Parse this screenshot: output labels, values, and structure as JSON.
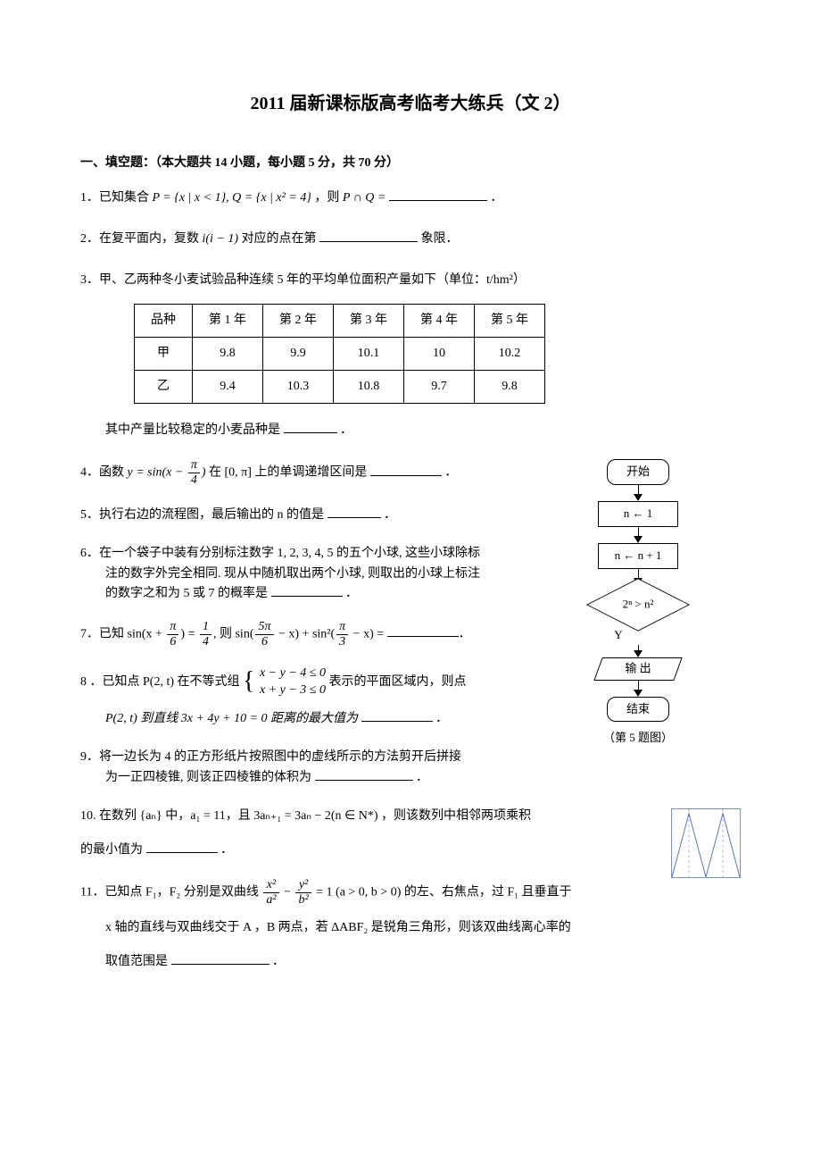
{
  "title": "2011 届新课标版高考临考大练兵（文 2）",
  "section_header": "一、填空题：（本大题共 14 小题，每小题 5 分，共 70 分）",
  "q1": {
    "text_a": "1．已知集合 ",
    "set_P": "P = {x | x < 1}, Q = {x | x² = 4}",
    "text_b": "，则 ",
    "result": "P ∩ Q =",
    "text_c": "．"
  },
  "q2": {
    "text_a": "2．在复平面内，复数 ",
    "expr": "i(i − 1)",
    "text_b": " 对应的点在第",
    "text_c": "象限．"
  },
  "q3": {
    "intro": "3．甲、乙两种冬小麦试验品种连续 5 年的平均单位面积产量如下（单位：t/hm²）",
    "table": {
      "columns": [
        "品种",
        "第 1 年",
        "第 2 年",
        "第 3 年",
        "第 4 年",
        "第 5 年"
      ],
      "rows": [
        [
          "甲",
          "9.8",
          "9.9",
          "10.1",
          "10",
          "10.2"
        ],
        [
          "乙",
          "9.4",
          "10.3",
          "10.8",
          "9.7",
          "9.8"
        ]
      ]
    },
    "tail": "其中产量比较稳定的小麦品种是",
    "tail_end": "．"
  },
  "q4": {
    "text_a": "4．函数 ",
    "y_eq": "y = sin(x − ",
    "frac_num": "π",
    "frac_den": "4",
    "close": ")",
    "text_b": " 在 [0, π] 上的单调递增区间是",
    "text_c": "．"
  },
  "q5": {
    "text": "5．执行右边的流程图，最后输出的 n 的值是",
    "text_end": "．"
  },
  "q6": {
    "l1": "6．在一个袋子中装有分别标注数字 1, 2, 3, 4, 5 的五个小球, 这些小球除标",
    "l2": "注的数字外完全相同. 现从中随机取出两个小球, 则取出的小球上标注",
    "l3": "的数字之和为 5 或 7 的概率是",
    "l3_end": "．"
  },
  "q7": {
    "text_a": "7．已知 sin(x + ",
    "f1_num": "π",
    "f1_den": "6",
    "mid1": ") = ",
    "f2_num": "1",
    "f2_den": "4",
    "mid2": ", 则 sin(",
    "f3_num": "5π",
    "f3_den": "6",
    "mid3": " − x) + sin²(",
    "f4_num": "π",
    "f4_den": "3",
    "close": " − x) =",
    "tail": "．"
  },
  "q8": {
    "text_a": "8 ．已知点 P(2, t) 在不等式组 ",
    "case1": "x − y − 4 ≤ 0",
    "case2": "x + y − 3 ≤ 0",
    "text_b": " 表示的平面区域内，则点",
    "text_c": "P(2, t) 到直线 3x + 4y + 10 = 0 距离的最大值为",
    "text_d": "．"
  },
  "q9": {
    "l1": "9．将一边长为 4 的正方形纸片按照图中的虚线所示的方法剪开后拼接",
    "l2": "为一正四棱锥, 则该正四棱锥的体积为",
    "l2_end": "．"
  },
  "q10": {
    "text_a": "10. 在数列 {aₙ} 中，a₁ = 11，且 3aₙ₊₁ = 3aₙ − 2(n ∈ N*) ，则该数列中相邻两项乘积",
    "text_b": "的最小值为",
    "text_c": "．"
  },
  "q11": {
    "intro": "11．已知点 F₁，F₂ 分别是双曲线 ",
    "fa_num": "x²",
    "fa_den": "a²",
    "minus": " − ",
    "fb_num": "y²",
    "fb_den": "b²",
    "eq": " = 1  (a > 0, b > 0) 的左、右焦点，过 F₁ 且垂直于",
    "l2": "x 轴的直线与双曲线交于 A ，B 两点，若 ΔABF₂ 是锐角三角形，则该双曲线离心率的",
    "l3": "取值范围是",
    "l3_end": "．"
  },
  "flowchart": {
    "start": "开始",
    "step1": "n ← 1",
    "step2": "n ← n + 1",
    "cond": "2ⁿ > n²",
    "yes": "Y",
    "output": "输 出",
    "end": "结束",
    "caption": "（第 5 题图）"
  },
  "thumb": {
    "stroke": "#4f6fc8",
    "dash": "#a5b3e0"
  }
}
